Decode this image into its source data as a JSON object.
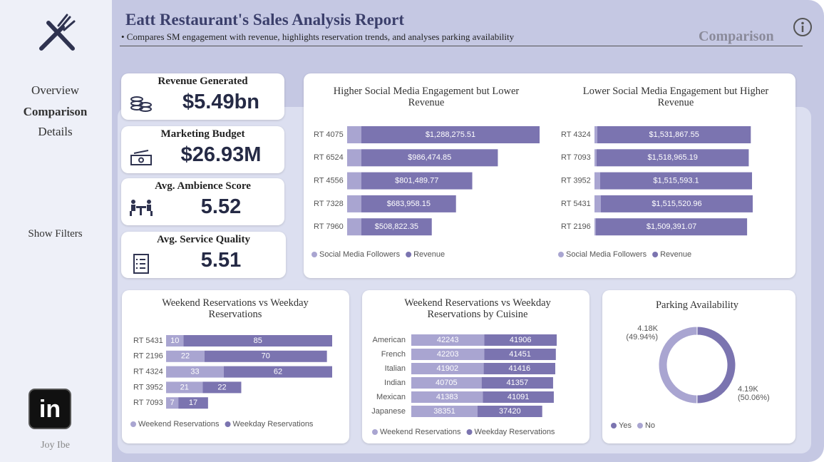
{
  "header": {
    "title": "Eatt Restaurant's Sales Analysis Report",
    "subtitle": "• Compares SM engagement with revenue, highlights reservation trends, and analyses parking availability",
    "page": "Comparison"
  },
  "nav": [
    "Overview",
    "Comparison",
    "Details"
  ],
  "show_filters": "Show Filters",
  "author": "Joy Ibe",
  "kpis": [
    {
      "label": "Revenue Generated",
      "value": "$5.49bn"
    },
    {
      "label": "Marketing Budget",
      "value": "$26.93M"
    },
    {
      "label": "Avg.  Ambience Score",
      "value": 5.52
    },
    {
      "label": "Avg. Service Quality",
      "value": 5.51
    }
  ],
  "chart_data": [
    {
      "type": "bar",
      "orientation": "horizontal",
      "stacked": true,
      "title": "Higher Social Media Engagement but Lower Revenue",
      "categories": [
        "RT 4075",
        "RT 6524",
        "RT 4556",
        "RT 7328",
        "RT 7960"
      ],
      "series": [
        {
          "name": "Social Media Followers",
          "color": "#a9a5d1",
          "values": [
            103000,
            103000,
            103000,
            103000,
            103000
          ]
        },
        {
          "name": "Revenue",
          "color": "#7b74b0",
          "values": [
            1288275.51,
            986474.85,
            801489.77,
            683958.15,
            508822.35
          ],
          "value_labels": [
            "$1,288,275.51",
            "$986,474.85",
            "$801,489.77",
            "$683,958.15",
            "$508,822.35"
          ]
        }
      ]
    },
    {
      "type": "bar",
      "orientation": "horizontal",
      "stacked": true,
      "title": "Lower Social Media Engagement but Higher Revenue",
      "categories": [
        "RT 4324",
        "RT 7093",
        "RT 3952",
        "RT 5431",
        "RT 2196"
      ],
      "series": [
        {
          "name": "Social Media Followers",
          "color": "#a9a5d1",
          "values": [
            28500,
            21000,
            57000,
            64000,
            14000
          ]
        },
        {
          "name": "Revenue",
          "color": "#7b74b0",
          "values": [
            1531867.55,
            1518965.19,
            1515593.1,
            1515520.96,
            1509391.07
          ],
          "value_labels": [
            "$1,531,867.55",
            "$1,518,965.19",
            "$1,515,593.1",
            "$1,515,520.96",
            "$1,509,391.07"
          ]
        }
      ]
    },
    {
      "type": "bar",
      "orientation": "horizontal",
      "stacked": true,
      "data_labels": true,
      "title": "Weekend Reservations vs Weekday Reservations",
      "categories": [
        "RT 5431",
        "RT 2196",
        "RT 4324",
        "RT 3952",
        "RT 7093"
      ],
      "series": [
        {
          "name": "Weekend Reservations",
          "color": "#a9a5d1",
          "values": [
            10,
            22,
            33,
            21,
            7
          ]
        },
        {
          "name": "Weekday Reservations",
          "color": "#7b74b0",
          "values": [
            85,
            70,
            62,
            22,
            17
          ]
        }
      ]
    },
    {
      "type": "bar",
      "orientation": "horizontal",
      "stacked": true,
      "data_labels": true,
      "title": "Weekend Reservations vs Weekday Reservations by Cuisine",
      "categories": [
        "American",
        "French",
        "Italian",
        "Indian",
        "Mexican",
        "Japanese"
      ],
      "series": [
        {
          "name": "Weekend Reservations",
          "color": "#a9a5d1",
          "values": [
            42243,
            42203,
            41902,
            40705,
            41383,
            38351
          ]
        },
        {
          "name": "Weekday Reservations",
          "color": "#7b74b0",
          "values": [
            41906,
            41451,
            41416,
            41357,
            41091,
            37420
          ]
        }
      ]
    },
    {
      "type": "donut",
      "title": "Parking Availability",
      "categories": [
        "Yes",
        "No"
      ],
      "values": [
        4190,
        4180
      ],
      "value_labels": [
        "4.19K (50.06%)",
        "4.18K (49.94%)"
      ],
      "colors": [
        "#7b74b0",
        "#a9a5d1"
      ]
    }
  ]
}
